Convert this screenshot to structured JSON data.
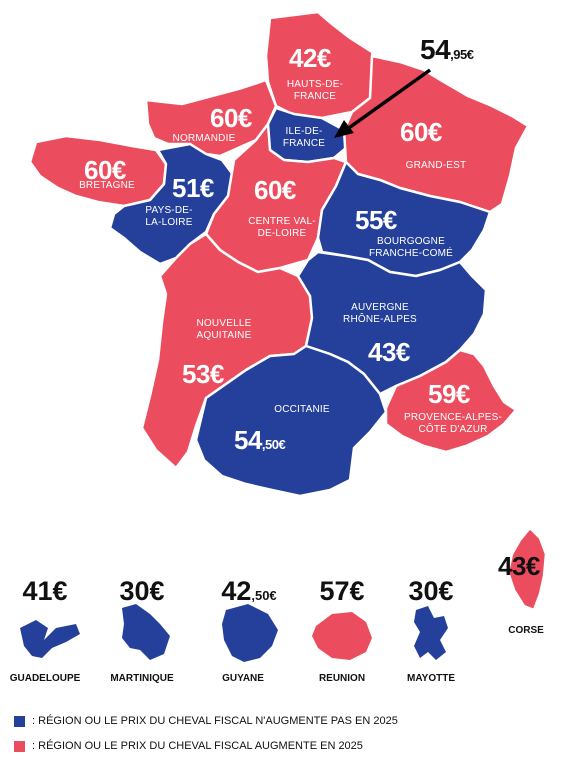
{
  "colors": {
    "blue": "#24409a",
    "red": "#ec4d5e",
    "border": "#ffffff"
  },
  "regions": {
    "hauts_de_france": {
      "name": "HAUTS-DE-FRANCE",
      "price": "42€"
    },
    "ile_de_france": {
      "name": "ILE-DE-FRANCE",
      "price": "54,95€"
    },
    "grand_est": {
      "name": "GRAND-EST",
      "price": "60€"
    },
    "normandie": {
      "name": "NORMANDIE",
      "price": "60€"
    },
    "bretagne": {
      "name": "BRETAGNE",
      "price": "60€"
    },
    "pays_de_la_loire": {
      "name": "PAYS-DE-LA-LOIRE",
      "price": "51€"
    },
    "centre_val_de_loire": {
      "name": "CENTRE VAL-DE-LOIRE",
      "price": "60€"
    },
    "bourgogne_franche_comte": {
      "name": "BOURGOGNE FRANCHE-COMÉ",
      "price": "55€"
    },
    "nouvelle_aquitaine": {
      "name": "NOUVELLE AQUITAINE",
      "price": "53€"
    },
    "auvergne_rhone_alpes": {
      "name": "AUVERGNE RHÔNE-ALPES",
      "price": "43€"
    },
    "occitanie": {
      "name": "OCCITANIE",
      "price": "54,50€"
    },
    "provence": {
      "name": "PROVENCE-ALPES-CÔTE D'AZUR",
      "price": "59€"
    },
    "corse": {
      "name": "CORSE",
      "price": "43€"
    }
  },
  "overseas": [
    {
      "name": "GUADELOUPE",
      "price": "41€"
    },
    {
      "name": "MARTINIQUE",
      "price": "30€"
    },
    {
      "name": "GUYANE",
      "price": "42,50€"
    },
    {
      "name": "REUNION",
      "price": "57€"
    },
    {
      "name": "MAYOTTE",
      "price": "30€"
    }
  ],
  "legend": {
    "blue": "RÉGION OU LE PRIX DU CHEVAL FISCAL N'AUGMENTE PAS EN 2025",
    "red": "RÉGION OU LE PRIX DU CHEVAL FISCAL AUGMENTE EN 2025"
  }
}
